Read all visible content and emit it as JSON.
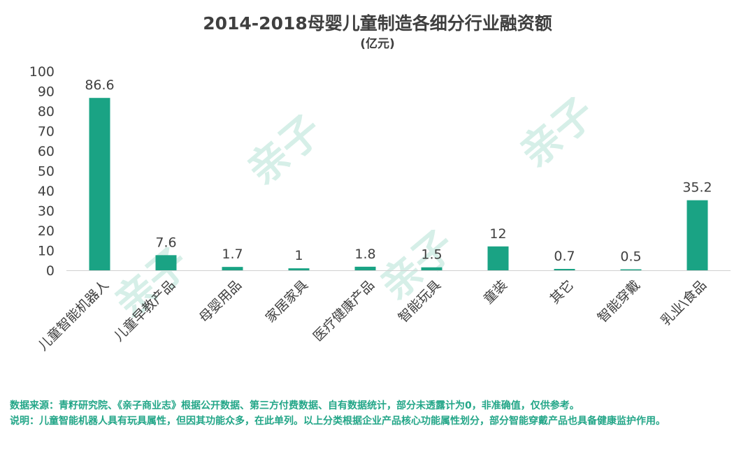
{
  "header": {
    "title": "2014-2018母婴儿童制造各细分行业融资额",
    "unit": "(亿元)"
  },
  "watermark_text": "亲子",
  "colors": {
    "bar": "#1aa384",
    "footer_text": "#23a688",
    "axis_text": "#404040",
    "watermark": "#d6efe8"
  },
  "chart_data": {
    "type": "bar",
    "title": "2014-2018母婴儿童制造各细分行业融资额",
    "subtitle": "(亿元)",
    "categories": [
      "儿童智能机器人",
      "儿童早教产品",
      "母婴用品",
      "家居家具",
      "医疗健康产品",
      "智能玩具",
      "童装",
      "其它",
      "智能穿戴",
      "乳业\\食品"
    ],
    "values": [
      86.6,
      7.6,
      1.7,
      1,
      1.8,
      1.5,
      12,
      0.7,
      0.5,
      35.2
    ],
    "data_labels": [
      "86.6",
      "7.6",
      "1.7",
      "1",
      "1.8",
      "1.5",
      "12",
      "0.7",
      "0.5",
      "35.2"
    ],
    "ylim": [
      0,
      100
    ],
    "yticks": [
      0,
      10,
      20,
      30,
      40,
      50,
      60,
      70,
      80,
      90,
      100
    ],
    "grid": false,
    "legend": "none",
    "xlabel": "",
    "ylabel": ""
  },
  "footer": {
    "source": "数据来源：青籽研究院、《亲子商业志》根据公开数据、第三方付费数据、自有数据统计，部分未透露计为0，非准确值，仅供参考。",
    "note": "说明：儿童智能机器人具有玩具属性，但因其功能众多，在此单列。以上分类根据企业产品核心功能属性划分，部分智能穿戴产品也具备健康监护作用。"
  }
}
